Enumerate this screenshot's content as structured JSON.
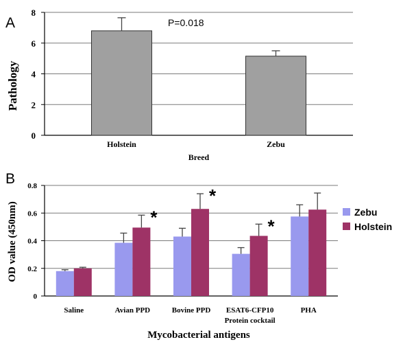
{
  "panel_labels": {
    "a": "A",
    "b": "B"
  },
  "chart_data": [
    {
      "type": "bar",
      "panel": "A",
      "title": "",
      "xlabel": "Breed",
      "ylabel": "Pathology",
      "categories": [
        "Holstein",
        "Zebu"
      ],
      "values": [
        6.8,
        5.15
      ],
      "errors": [
        0.85,
        0.35
      ],
      "ylim": [
        0,
        8
      ],
      "yticks": [
        "0",
        "2",
        "4",
        "6",
        "8"
      ],
      "grid": true,
      "annotation": "P=0.018",
      "bar_color": "#a0a0a0"
    },
    {
      "type": "bar",
      "panel": "B",
      "title": "",
      "xlabel": "Mycobacterial antigens",
      "ylabel": "OD value (450nm)",
      "categories": [
        "Saline",
        "Avian PPD",
        "Bovine PPD",
        "ESAT6-CFP10 Protein cocktail",
        "PHA"
      ],
      "category_lines": [
        [
          "Saline"
        ],
        [
          "Avian PPD"
        ],
        [
          "Bovine PPD"
        ],
        [
          "ESAT6-CFP10",
          "Protein cocktail"
        ],
        [
          "PHA"
        ]
      ],
      "series": [
        {
          "name": "Zebu",
          "values": [
            0.18,
            0.385,
            0.43,
            0.305,
            0.575
          ],
          "errors": [
            0.01,
            0.07,
            0.06,
            0.045,
            0.085
          ],
          "color": "#9999ee"
        },
        {
          "name": "Holstein",
          "values": [
            0.2,
            0.495,
            0.63,
            0.435,
            0.625
          ],
          "errors": [
            0.008,
            0.09,
            0.11,
            0.085,
            0.12
          ],
          "color": "#9e3366"
        }
      ],
      "significance_marker": "*",
      "significant_categories": [
        1,
        2,
        3
      ],
      "ylim": [
        0,
        0.8
      ],
      "yticks": [
        "0",
        "0.2",
        "0.4",
        "0.6",
        "0.8"
      ],
      "grid": true,
      "legend_position": "right"
    }
  ]
}
